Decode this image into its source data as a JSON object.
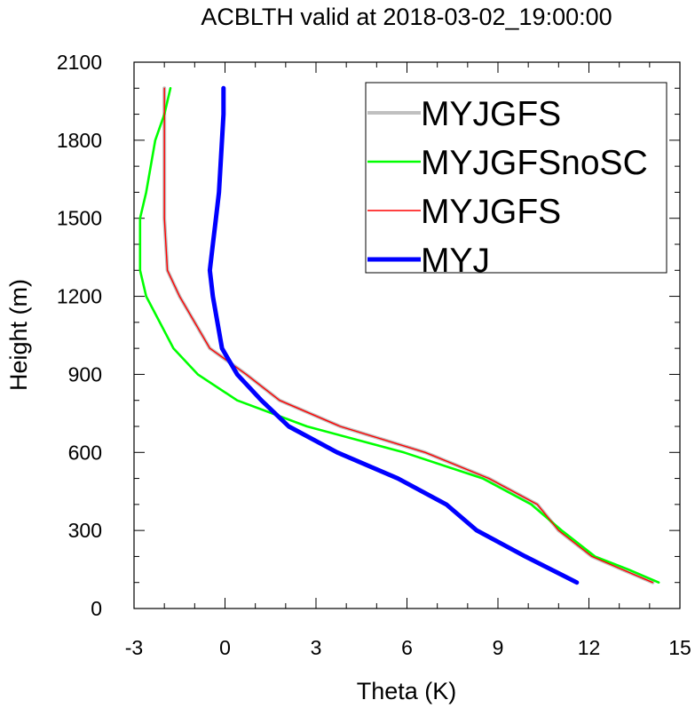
{
  "chart_data": {
    "type": "line",
    "title": "ACBLTH valid at 2018-03-02_19:00:00",
    "xlabel": "Theta (K)",
    "ylabel": "Height (m)",
    "xlim": [
      -3,
      15
    ],
    "ylim": [
      0,
      2100
    ],
    "xticks": [
      "-3",
      "0",
      "3",
      "6",
      "9",
      "12",
      "15"
    ],
    "yticks": [
      "0",
      "300",
      "600",
      "900",
      "1200",
      "1500",
      "1800",
      "2100"
    ],
    "grid": false,
    "legend_position": "top-right",
    "series": [
      {
        "name": "MYJGFS",
        "color": "#c0c0c0",
        "x": [
          14.1,
          13.1,
          12.1,
          11.0,
          10.3,
          8.7,
          6.6,
          3.8,
          1.8,
          0.7,
          -0.5,
          -1.5,
          -1.9,
          -2.0,
          -2.0,
          -2.0,
          -2.0,
          -2.0
        ],
        "y": [
          100,
          150,
          200,
          300,
          400,
          500,
          600,
          700,
          800,
          900,
          1000,
          1200,
          1300,
          1500,
          1600,
          1800,
          1900,
          2000
        ]
      },
      {
        "name": "MYJGFSnoSC",
        "color": "#00ff00",
        "x": [
          14.3,
          13.3,
          12.2,
          11.1,
          10.1,
          8.5,
          5.9,
          2.7,
          0.4,
          -0.9,
          -1.7,
          -2.6,
          -2.8,
          -2.8,
          -2.6,
          -2.3,
          -2.0,
          -1.8
        ],
        "y": [
          100,
          150,
          200,
          300,
          400,
          500,
          600,
          700,
          800,
          900,
          1000,
          1200,
          1300,
          1500,
          1600,
          1800,
          1900,
          2000
        ]
      },
      {
        "name": "MYJGFS",
        "color": "#ff0000",
        "x": [
          14.1,
          13.1,
          12.1,
          11.0,
          10.3,
          8.7,
          6.6,
          3.8,
          1.8,
          0.7,
          -0.5,
          -1.5,
          -1.9,
          -2.0,
          -2.0,
          -2.0,
          -2.0,
          -2.0
        ],
        "y": [
          100,
          150,
          200,
          300,
          400,
          500,
          600,
          700,
          800,
          900,
          1000,
          1200,
          1300,
          1500,
          1600,
          1800,
          1900,
          2000
        ]
      },
      {
        "name": "MYJ",
        "color": "#0000ff",
        "x": [
          11.6,
          9.9,
          8.3,
          7.3,
          5.7,
          3.7,
          2.1,
          1.2,
          0.4,
          -0.1,
          -0.4,
          -0.5,
          -0.4,
          -0.3,
          -0.2,
          -0.1,
          -0.05,
          -0.05
        ],
        "y": [
          100,
          200,
          300,
          400,
          500,
          600,
          700,
          800,
          900,
          1000,
          1200,
          1300,
          1400,
          1500,
          1600,
          1800,
          1900,
          2000
        ]
      }
    ]
  }
}
